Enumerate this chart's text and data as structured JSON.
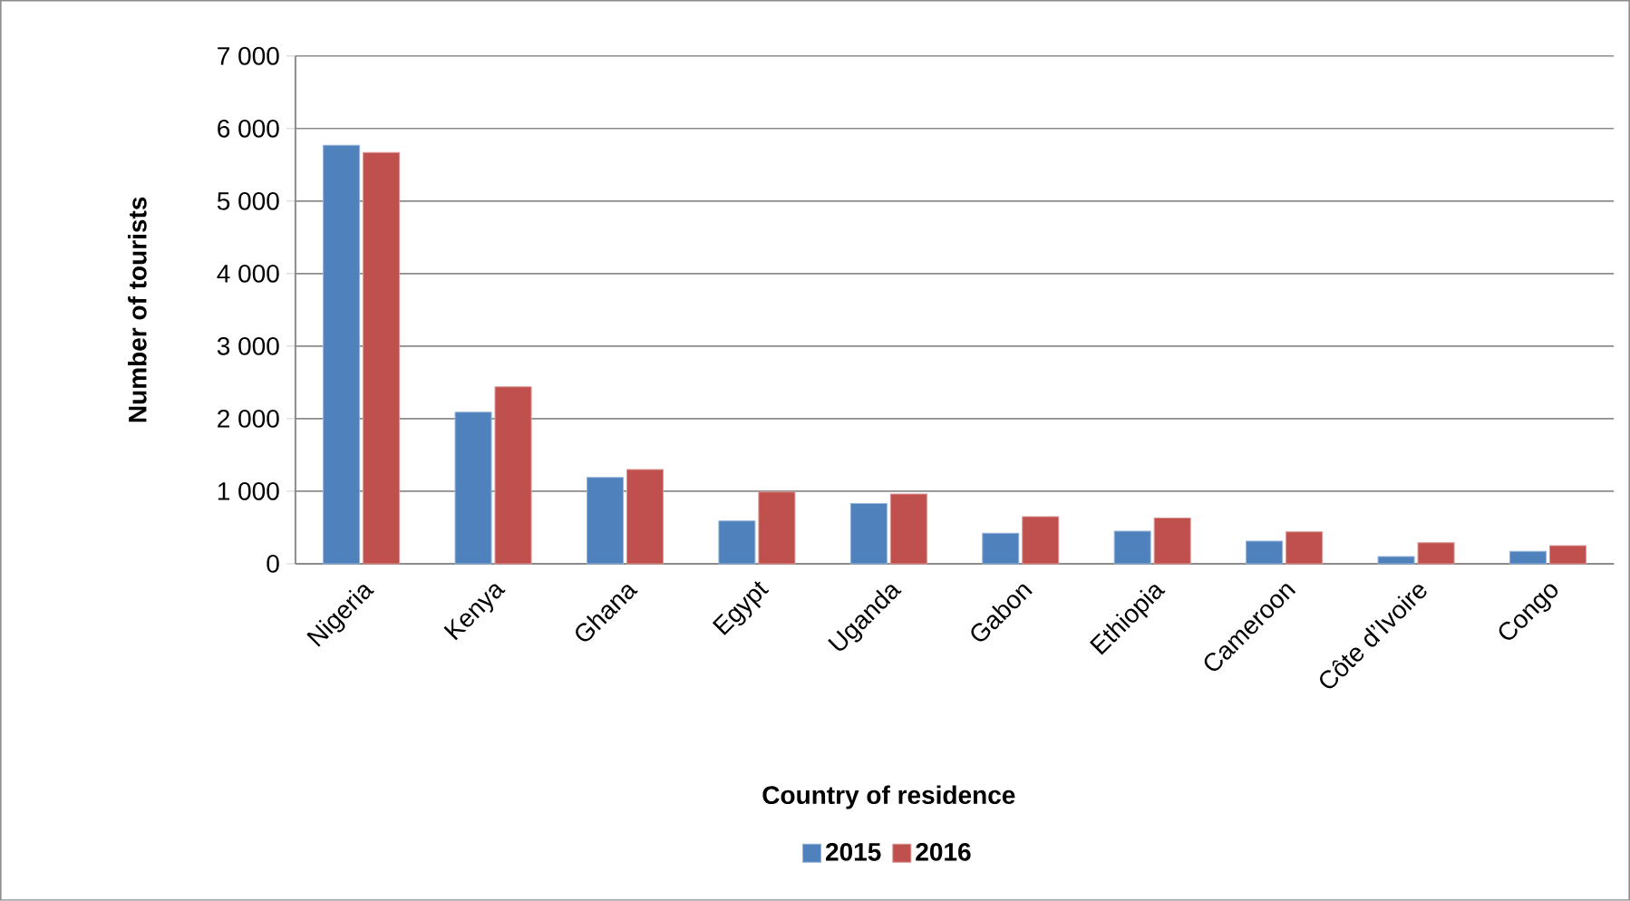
{
  "chart_data": {
    "type": "bar",
    "xlabel": "Country of residence",
    "ylabel": "Number of tourists",
    "categories": [
      "Nigeria",
      "Kenya",
      "Ghana",
      "Egypt",
      "Uganda",
      "Gabon",
      "Ethiopia",
      "Cameroon",
      "Côte d’Ivoire",
      "Congo"
    ],
    "series": [
      {
        "name": "2015",
        "color": "#4f81bd",
        "values": [
          5770,
          2090,
          1190,
          590,
          830,
          420,
          450,
          310,
          100,
          170
        ]
      },
      {
        "name": "2016",
        "color": "#c0504d",
        "values": [
          5670,
          2440,
          1300,
          990,
          960,
          650,
          630,
          440,
          290,
          250
        ]
      }
    ],
    "ylim": [
      0,
      7000
    ],
    "yticks": [
      {
        "value": 0,
        "label": "0"
      },
      {
        "value": 1000,
        "label": "1 000"
      },
      {
        "value": 2000,
        "label": "2 000"
      },
      {
        "value": 3000,
        "label": "3 000"
      },
      {
        "value": 4000,
        "label": "4 000"
      },
      {
        "value": 5000,
        "label": "5 000"
      },
      {
        "value": 6000,
        "label": "6 000"
      },
      {
        "value": 7000,
        "label": "7 000"
      }
    ],
    "grid": "y",
    "legend": "bottom"
  }
}
